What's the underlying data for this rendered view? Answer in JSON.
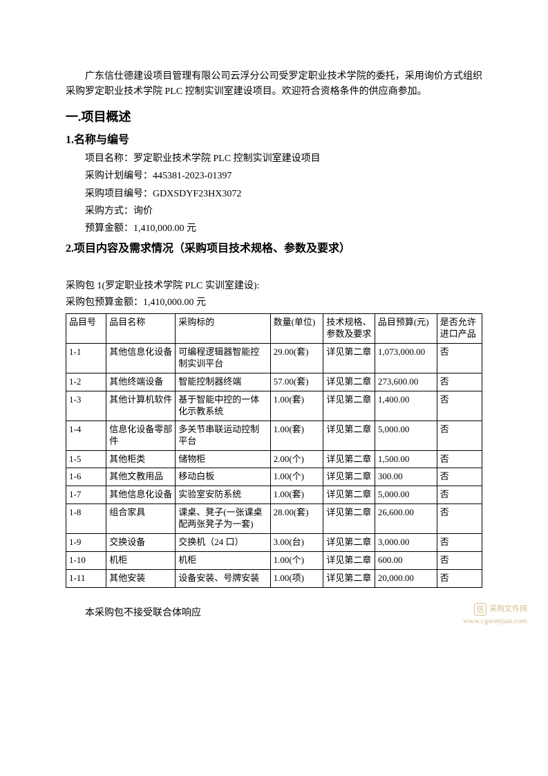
{
  "intro": "广东信仕德建设项目管理有限公司云浮分公司受罗定职业技术学院的委托，采用询价方式组织采购罗定职业技术学院 PLC 控制实训室建设项目。欢迎符合资格条件的供应商参加。",
  "section1": {
    "heading": "一.项目概述",
    "sub1": {
      "heading": "1.名称与编号",
      "lines": {
        "project_name_label": "项目名称：",
        "project_name_value": "罗定职业技术学院 PLC 控制实训室建设项目",
        "plan_no_label": "采购计划编号：",
        "plan_no_value": "445381-2023-01397",
        "proj_no_label": "采购项目编号：",
        "proj_no_value": "GDXSDYF23HX3072",
        "method_label": "采购方式：",
        "method_value": "询价",
        "budget_label": "预算金额：",
        "budget_value": "1,410,000.00 元"
      }
    },
    "sub2": {
      "heading": "2.项目内容及需求情况（采购项目技术规格、参数及要求）"
    }
  },
  "package": {
    "title": "采购包 1(罗定职业技术学院 PLC 实训室建设):",
    "budget": "采购包预算金额：1,410,000.00 元"
  },
  "table": {
    "headers": {
      "c1": "品目号",
      "c2": "品目名称",
      "c3": "采购标的",
      "c4": "数量(单位)",
      "c5": "技术规格、参数及要求",
      "c6": "品目预算(元)",
      "c7": "是否允许进口产品"
    },
    "rows": [
      {
        "c1": "1-1",
        "c2": "其他信息化设备",
        "c3": "可编程逻辑器智能控制实训平台",
        "c4": "29.00(套)",
        "c5": "详见第二章",
        "c6": "1,073,000.00",
        "c7": "否"
      },
      {
        "c1": "1-2",
        "c2": "其他终端设备",
        "c3": "智能控制器终端",
        "c4": "57.00(套)",
        "c5": "详见第二章",
        "c6": "273,600.00",
        "c7": "否"
      },
      {
        "c1": "1-3",
        "c2": "其他计算机软件",
        "c3": "基于智能中控的一体化示教系统",
        "c4": "1.00(套)",
        "c5": "详见第二章",
        "c6": "1,400.00",
        "c7": "否"
      },
      {
        "c1": "1-4",
        "c2": "信息化设备零部件",
        "c3": "多关节串联运动控制平台",
        "c4": "1.00(套)",
        "c5": "详见第二章",
        "c6": "5,000.00",
        "c7": "否"
      },
      {
        "c1": "1-5",
        "c2": "其他柜类",
        "c3": "储物柜",
        "c4": "2.00(个)",
        "c5": "详见第二章",
        "c6": "1,500.00",
        "c7": "否"
      },
      {
        "c1": "1-6",
        "c2": "其他文教用品",
        "c3": "移动白板",
        "c4": "1.00(个)",
        "c5": "详见第二章",
        "c6": "300.00",
        "c7": "否"
      },
      {
        "c1": "1-7",
        "c2": "其他信息化设备",
        "c3": "实验室安防系统",
        "c4": "1.00(套)",
        "c5": "详见第二章",
        "c6": "5,000.00",
        "c7": "否"
      },
      {
        "c1": "1-8",
        "c2": "组合家具",
        "c3": "课桌、凳子(一张课桌配两张凳子为一套)",
        "c4": "28.00(套)",
        "c5": "详见第二章",
        "c6": "26,600.00",
        "c7": "否"
      },
      {
        "c1": "1-9",
        "c2": "交换设备",
        "c3": "交换机（24 口）",
        "c4": "3.00(台)",
        "c5": "详见第二章",
        "c6": "3,000.00",
        "c7": "否"
      },
      {
        "c1": "1-10",
        "c2": "机柜",
        "c3": "机柜",
        "c4": "1.00(个)",
        "c5": "详见第二章",
        "c6": "600.00",
        "c7": "否"
      },
      {
        "c1": "1-11",
        "c2": "其他安装",
        "c3": "设备安装、号牌安装",
        "c4": "1.00(项)",
        "c5": "详见第二章",
        "c6": "20,000.00",
        "c7": "否"
      }
    ]
  },
  "footer_note": "本采购包不接受联合体响应",
  "watermark": {
    "text": "采购文件网",
    "url": "www.cgwenjian.com",
    "icon": "信"
  }
}
